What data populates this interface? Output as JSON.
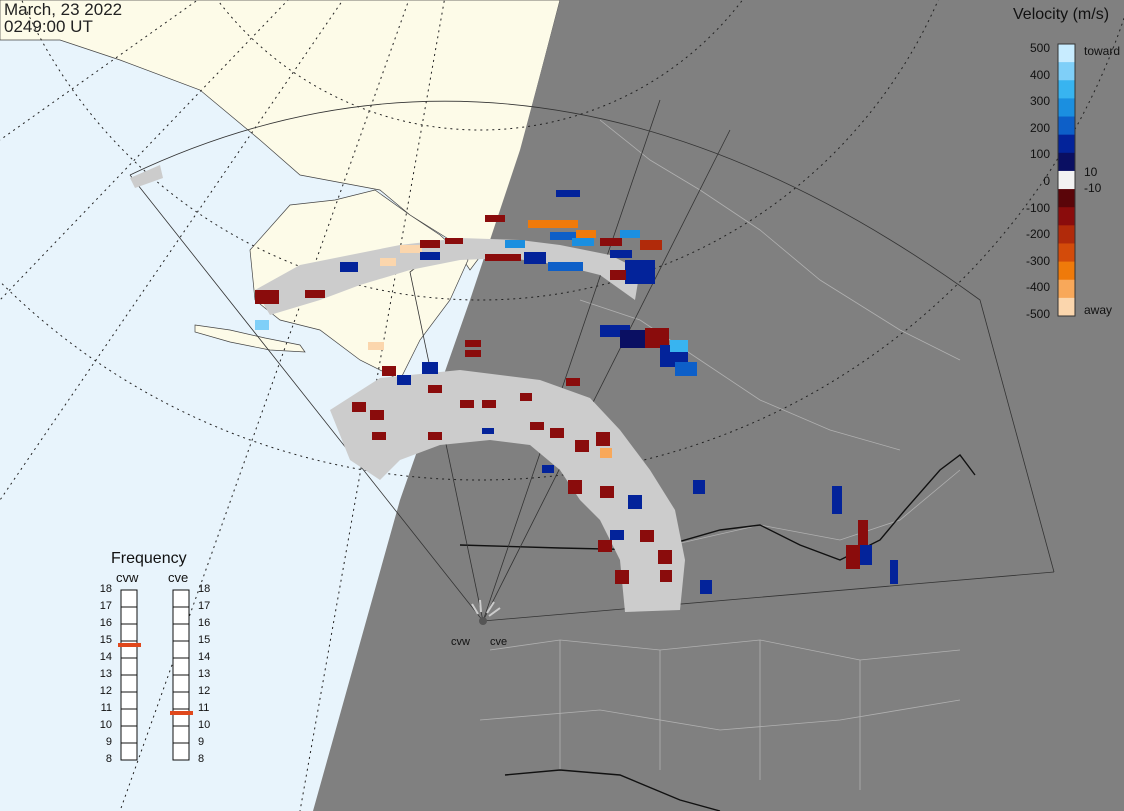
{
  "timestamp": {
    "date": "March, 23 2022",
    "time": "0249:00 UT"
  },
  "velocity_legend": {
    "title": "Velocity (m/s)",
    "ticks": [
      "500",
      "400",
      "300",
      "200",
      "100",
      "0",
      "-100",
      "-200",
      "-300",
      "-400",
      "-500"
    ],
    "inner_labels": [
      "10",
      "-10"
    ],
    "toward_label": "toward",
    "away_label": "away",
    "colors": [
      "#c8ecff",
      "#7fcff8",
      "#38b4f0",
      "#1b8fe0",
      "#0d5fc8",
      "#03239a",
      "#0a0f62",
      "#f2f2f2",
      "#5a0509",
      "#8a0c0c",
      "#b12a0a",
      "#d34b0a",
      "#ef7a0a",
      "#f8a85a",
      "#fbd6ad"
    ]
  },
  "frequency_panel": {
    "title": "Frequency",
    "radars": [
      "cvw",
      "cve"
    ],
    "ticks": [
      "18",
      "17",
      "16",
      "15",
      "14",
      "13",
      "12",
      "11",
      "10",
      "9",
      "8"
    ],
    "selected": {
      "cvw": 15,
      "cve": 11
    },
    "marker_color": "#e0481c"
  },
  "radar_sites": [
    "cvw",
    "cve"
  ],
  "map_colors": {
    "ocean": "#e8f4fc",
    "land": "#fdfbe8",
    "night": "#808080",
    "scatter_gray": "#cccccc"
  }
}
